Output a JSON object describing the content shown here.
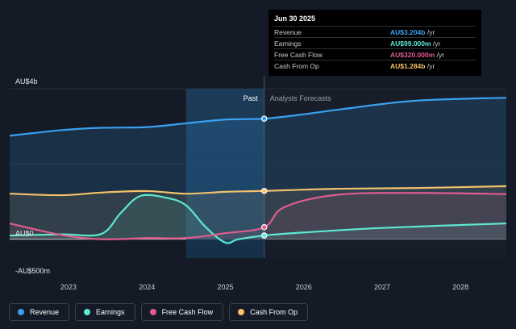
{
  "chart_data": {
    "type": "line",
    "x_ticks": [
      "2023",
      "2024",
      "2025",
      "2026",
      "2027",
      "2028"
    ],
    "y_ticks": [
      {
        "value": 4000,
        "label": "AU$4b"
      },
      {
        "value": 0,
        "label": "AU$0"
      },
      {
        "value": -500,
        "label": "-AU$500m"
      }
    ],
    "y_unit": "AU$ millions",
    "ylim": [
      -500,
      4000
    ],
    "xlim": [
      "2022-04",
      "2028-08"
    ],
    "past_label": "Past",
    "forecast_label": "Analysts Forecasts",
    "highlight_range": [
      "2024-07",
      "2025-06-30"
    ],
    "series": [
      {
        "name": "Revenue",
        "color": "#3aa0f0",
        "points": [
          [
            "2022-04",
            2750
          ],
          [
            "2022-12",
            2900
          ],
          [
            "2023-06",
            2960
          ],
          [
            "2024-01",
            2980
          ],
          [
            "2024-07",
            3080
          ],
          [
            "2025-01",
            3180
          ],
          [
            "2025-06-30",
            3204
          ],
          [
            "2026-01",
            3320
          ],
          [
            "2026-07",
            3460
          ],
          [
            "2027-06",
            3680
          ],
          [
            "2028-08",
            3760
          ]
        ]
      },
      {
        "name": "Earnings",
        "color": "#5ee8d2",
        "points": [
          [
            "2022-04",
            99
          ],
          [
            "2022-12",
            130
          ],
          [
            "2023-06",
            140
          ],
          [
            "2023-09",
            700
          ],
          [
            "2023-12",
            1150
          ],
          [
            "2024-04",
            1100
          ],
          [
            "2024-07",
            900
          ],
          [
            "2024-10",
            320
          ],
          [
            "2025-01",
            -90
          ],
          [
            "2025-03",
            0
          ],
          [
            "2025-06-30",
            99
          ],
          [
            "2026-01",
            180
          ],
          [
            "2027-01",
            300
          ],
          [
            "2028-08",
            420
          ]
        ]
      },
      {
        "name": "Free Cash Flow",
        "color": "#e05c8f",
        "points": [
          [
            "2022-04",
            420
          ],
          [
            "2022-12",
            110
          ],
          [
            "2023-06",
            0
          ],
          [
            "2024-01",
            30
          ],
          [
            "2024-07",
            30
          ],
          [
            "2025-01",
            160
          ],
          [
            "2025-06-30",
            320
          ],
          [
            "2025-10",
            850
          ],
          [
            "2026-06",
            1180
          ],
          [
            "2027-06",
            1230
          ],
          [
            "2028-08",
            1200
          ]
        ]
      },
      {
        "name": "Cash From Op",
        "color": "#f2c26b",
        "points": [
          [
            "2022-04",
            1210
          ],
          [
            "2022-12",
            1170
          ],
          [
            "2023-06",
            1240
          ],
          [
            "2024-01",
            1280
          ],
          [
            "2024-07",
            1210
          ],
          [
            "2025-01",
            1260
          ],
          [
            "2025-06-30",
            1284
          ],
          [
            "2026-06",
            1340
          ],
          [
            "2027-06",
            1360
          ],
          [
            "2028-08",
            1410
          ]
        ]
      }
    ]
  },
  "tooltip": {
    "date": "Jun 30 2025",
    "rows": [
      {
        "label": "Revenue",
        "value": "AU$3.204b",
        "unit": "/yr",
        "color": "#3aa0f0"
      },
      {
        "label": "Earnings",
        "value": "AU$99.000m",
        "unit": "/yr",
        "color": "#5ee8d2"
      },
      {
        "label": "Free Cash Flow",
        "value": "AU$320.000m",
        "unit": "/yr",
        "color": "#e05c8f"
      },
      {
        "label": "Cash From Op",
        "value": "AU$1.284b",
        "unit": "/yr",
        "color": "#f2c26b"
      }
    ]
  },
  "legend": [
    {
      "label": "Revenue",
      "color": "#3aa0f0"
    },
    {
      "label": "Earnings",
      "color": "#5ee8d2"
    },
    {
      "label": "Free Cash Flow",
      "color": "#e05c8f"
    },
    {
      "label": "Cash From Op",
      "color": "#f2c26b"
    }
  ]
}
